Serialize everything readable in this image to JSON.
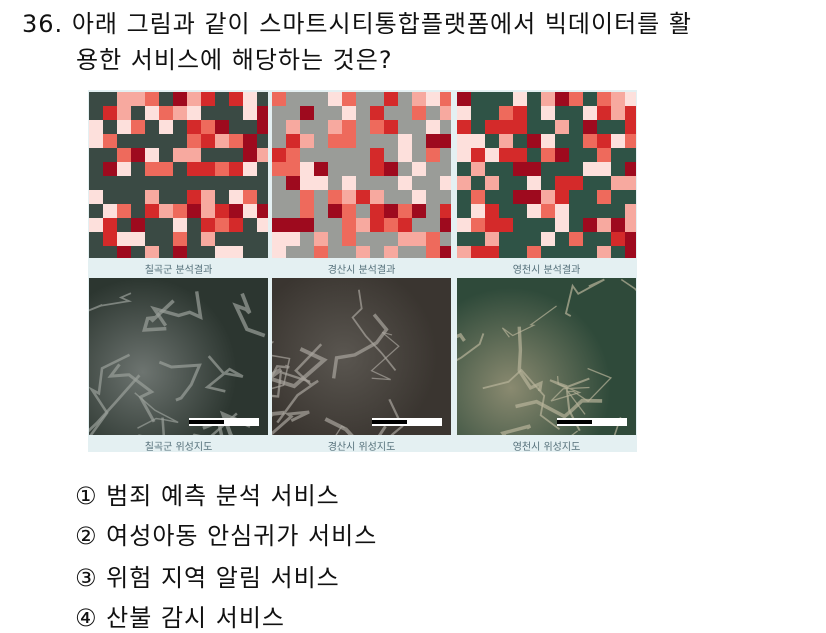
{
  "question": {
    "number": "36.",
    "line1": "아래 그림과 같이 스마트시티통합플랫폼에서 빅데이터를 활",
    "line2": "용한 서비스에 해당하는 것은?"
  },
  "figure": {
    "top_captions": [
      "칠곡군 분석결과",
      "경산시 분석결과",
      "영천시 분석결과"
    ],
    "bottom_captions": [
      "칠곡군 위성지도",
      "경산시 위성지도",
      "영천시 위성지도"
    ],
    "colors": {
      "heat": "#c0102a",
      "forest": "#2c4a3e",
      "urban": "#8a8a8a"
    }
  },
  "options": [
    {
      "mark": "①",
      "text": "범죄 예측 분석 서비스"
    },
    {
      "mark": "②",
      "text": "여성아동 안심귀가 서비스"
    },
    {
      "mark": "③",
      "text": "위험 지역 알림 서비스"
    },
    {
      "mark": "④",
      "text": "산불 감시 서비스"
    }
  ]
}
